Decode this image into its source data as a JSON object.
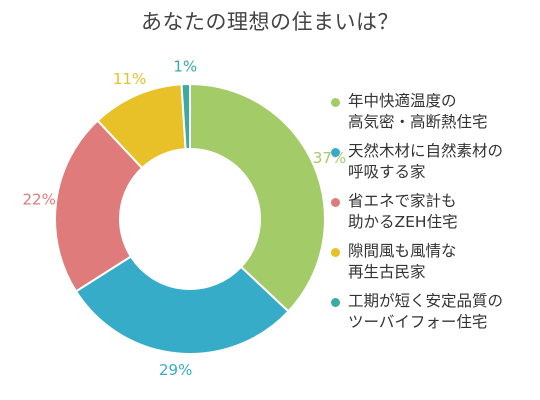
{
  "chart_data": {
    "type": "pie",
    "title": "あなたの理想の住まいは？",
    "categories": [
      "年中快適温度の\n高気密・高断熱住宅",
      "天然木材に自然素材の\n呼吸する家",
      "省エネで家計も\n助かるZEH住宅",
      "隙間風も風情な\n再生古民家",
      "工期が短く安定品質の\nツーバイフォー住宅"
    ],
    "values": [
      37,
      29,
      22,
      11,
      1
    ],
    "value_labels": [
      "37%",
      "29%",
      "22%",
      "11%",
      "1%"
    ],
    "colors": [
      "#a3cc69",
      "#37acc8",
      "#e07b7b",
      "#e8c028",
      "#3aaaa3"
    ],
    "donut": true,
    "legend_position": "right"
  }
}
